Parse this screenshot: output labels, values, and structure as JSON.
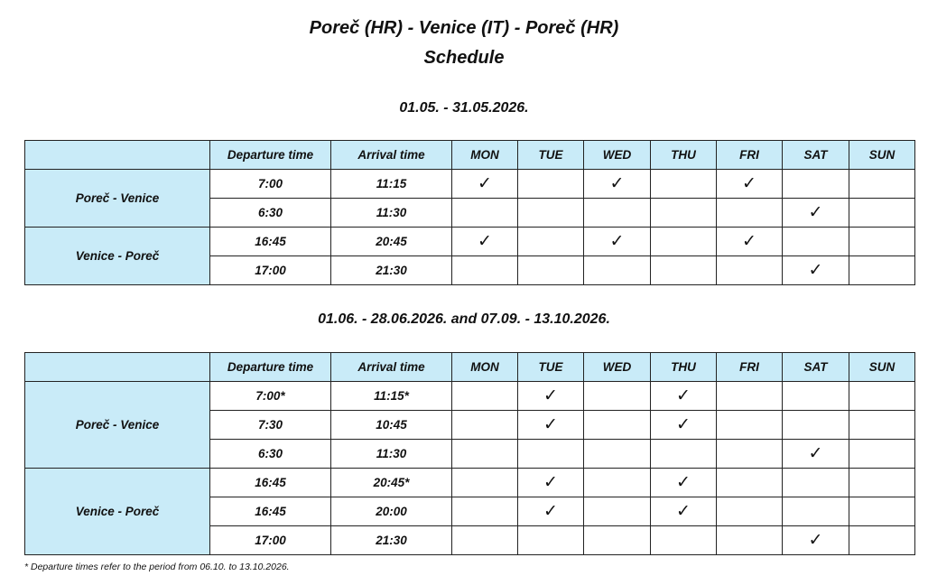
{
  "title": "Poreč (HR) - Venice (IT) - Poreč (HR)",
  "subtitle": "Schedule",
  "columns": [
    "",
    "Departure time",
    "Arrival time",
    "MON",
    "TUE",
    "WED",
    "THU",
    "FRI",
    "SAT",
    "SUN"
  ],
  "check_mark": "✓",
  "schedules": [
    {
      "period": "01.05. - 31.05.2026.",
      "routes": [
        {
          "name": "Poreč - Venice",
          "rows": [
            {
              "departure": "7:00",
              "arrival": "11:15",
              "days": [
                true,
                false,
                true,
                false,
                true,
                false,
                false
              ]
            },
            {
              "departure": "6:30",
              "arrival": "11:30",
              "days": [
                false,
                false,
                false,
                false,
                false,
                true,
                false
              ]
            }
          ]
        },
        {
          "name": "Venice - Poreč",
          "rows": [
            {
              "departure": "16:45",
              "arrival": "20:45",
              "days": [
                true,
                false,
                true,
                false,
                true,
                false,
                false
              ]
            },
            {
              "departure": "17:00",
              "arrival": "21:30",
              "days": [
                false,
                false,
                false,
                false,
                false,
                true,
                false
              ]
            }
          ]
        }
      ]
    },
    {
      "period": "01.06. - 28.06.2026. and  07.09. - 13.10.2026.",
      "routes": [
        {
          "name": "Poreč - Venice",
          "rows": [
            {
              "departure": "7:00*",
              "arrival": "11:15*",
              "days": [
                false,
                true,
                false,
                true,
                false,
                false,
                false
              ]
            },
            {
              "departure": "7:30",
              "arrival": "10:45",
              "days": [
                false,
                true,
                false,
                true,
                false,
                false,
                false
              ]
            },
            {
              "departure": "6:30",
              "arrival": "11:30",
              "days": [
                false,
                false,
                false,
                false,
                false,
                true,
                false
              ]
            }
          ]
        },
        {
          "name": "Venice - Poreč",
          "rows": [
            {
              "departure": "16:45",
              "arrival": "20:45*",
              "days": [
                false,
                true,
                false,
                true,
                false,
                false,
                false
              ]
            },
            {
              "departure": "16:45",
              "arrival": "20:00",
              "days": [
                false,
                true,
                false,
                true,
                false,
                false,
                false
              ]
            },
            {
              "departure": "17:00",
              "arrival": "21:30",
              "days": [
                false,
                false,
                false,
                false,
                false,
                true,
                false
              ]
            }
          ]
        }
      ]
    }
  ],
  "footnote": "* Departure times refer to the period from 06.10. to 13.10.2026."
}
